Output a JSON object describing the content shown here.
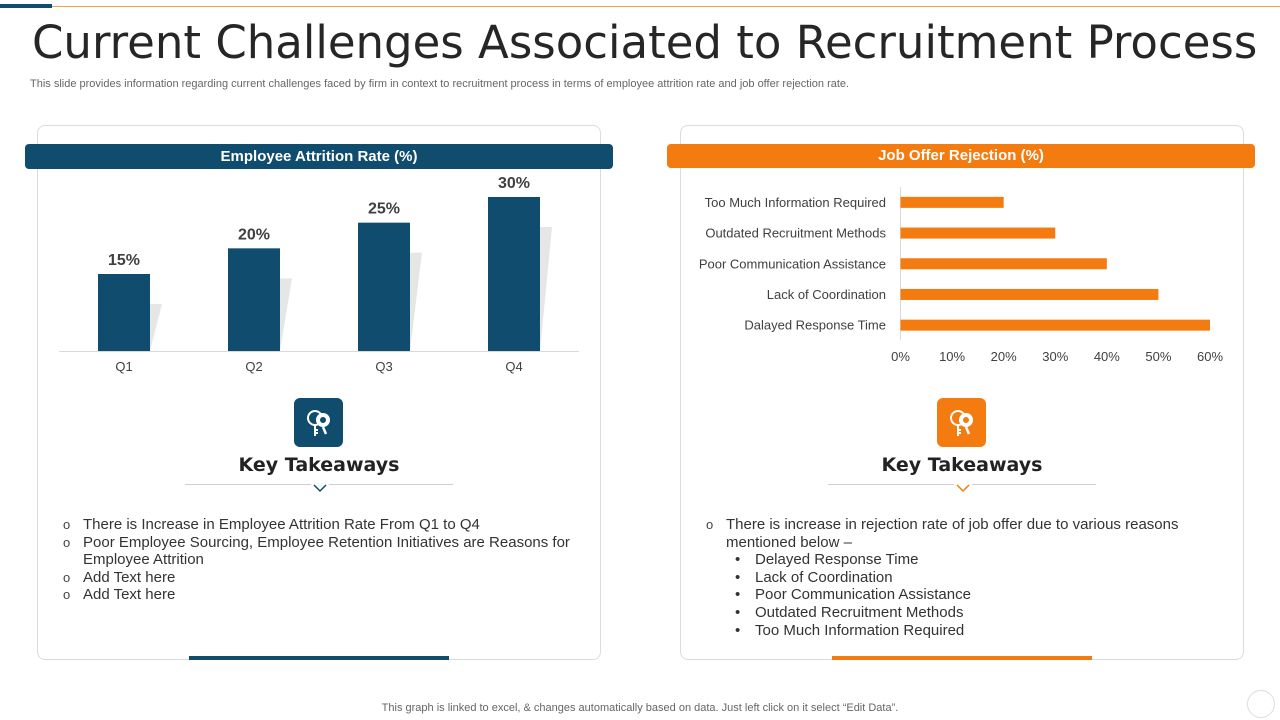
{
  "slide": {
    "title": "Current Challenges Associated to Recruitment Process",
    "subtitle": "This slide provides information regarding current challenges faced by firm in context to recruitment process in terms of employee attrition rate and job offer rejection rate.",
    "footer": "This graph is linked to excel, & changes automatically based on data. Just left click on it select “Edit Data”."
  },
  "colors": {
    "navy": "#0f4c6e",
    "orange": "#f47b0f"
  },
  "left_panel": {
    "banner": "Employee Attrition Rate (%)",
    "icon": "keys-icon",
    "takeaways_title": "Key Takeaways",
    "takeaways": [
      "There is Increase in Employee Attrition Rate From Q1 to Q4",
      "Poor Employee Sourcing, Employee Retention Initiatives are Reasons for Employee Attrition",
      "Add Text here",
      "Add Text here"
    ]
  },
  "right_panel": {
    "banner": "Job Offer Rejection (%)",
    "icon": "keys-icon",
    "takeaways_title": "Key Takeaways",
    "takeaway_intro": "There is increase in rejection rate of job offer due to various reasons mentioned below –",
    "takeaway_items": [
      "Delayed Response Time",
      "Lack of Coordination",
      "Poor Communication Assistance",
      "Outdated Recruitment Methods",
      "Too Much Information Required"
    ]
  },
  "chart_data": [
    {
      "type": "bar",
      "title": "Employee Attrition Rate (%)",
      "categories": [
        "Q1",
        "Q2",
        "Q3",
        "Q4"
      ],
      "values": [
        15,
        20,
        25,
        30
      ],
      "data_labels": [
        "15%",
        "20%",
        "25%",
        "30%"
      ],
      "ylim": [
        0,
        30
      ],
      "grid": false,
      "color": "#0f4c6e"
    },
    {
      "type": "bar",
      "orientation": "horizontal",
      "title": "Job Offer Rejection (%)",
      "categories": [
        "Too Much Information Required",
        "Outdated Recruitment Methods",
        "Poor Communication Assistance",
        "Lack of Coordination",
        "Dalayed Response Time"
      ],
      "values": [
        20,
        30,
        40,
        50,
        60
      ],
      "xticks": [
        "0%",
        "10%",
        "20%",
        "30%",
        "40%",
        "50%",
        "60%"
      ],
      "xlim": [
        0,
        60
      ],
      "grid": false,
      "color": "#f47b0f"
    }
  ]
}
